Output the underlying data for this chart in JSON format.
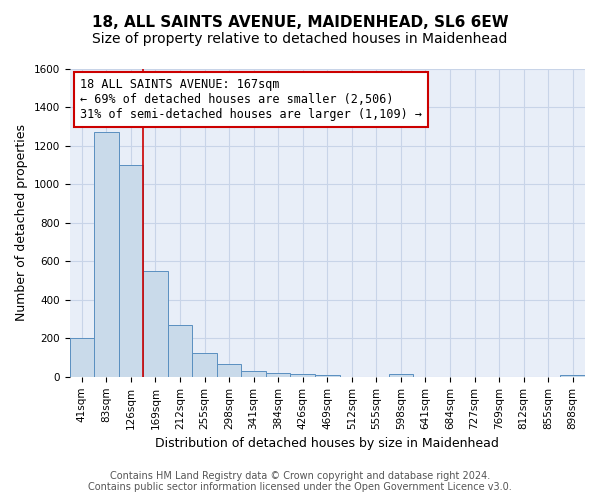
{
  "title": "18, ALL SAINTS AVENUE, MAIDENHEAD, SL6 6EW",
  "subtitle": "Size of property relative to detached houses in Maidenhead",
  "xlabel": "Distribution of detached houses by size in Maidenhead",
  "ylabel": "Number of detached properties",
  "bar_labels": [
    "41sqm",
    "83sqm",
    "126sqm",
    "169sqm",
    "212sqm",
    "255sqm",
    "298sqm",
    "341sqm",
    "384sqm",
    "426sqm",
    "469sqm",
    "512sqm",
    "555sqm",
    "598sqm",
    "641sqm",
    "684sqm",
    "727sqm",
    "769sqm",
    "812sqm",
    "855sqm",
    "898sqm"
  ],
  "bar_values": [
    200,
    1270,
    1100,
    550,
    270,
    125,
    65,
    30,
    20,
    15,
    10,
    0,
    0,
    15,
    0,
    0,
    0,
    0,
    0,
    0,
    10
  ],
  "bar_color": "#c9daea",
  "bar_edge_color": "#5a8fc0",
  "property_line_color": "#cc0000",
  "annotation_title": "18 ALL SAINTS AVENUE: 167sqm",
  "annotation_line1": "← 69% of detached houses are smaller (2,506)",
  "annotation_line2": "31% of semi-detached houses are larger (1,109) →",
  "annotation_box_edge_color": "#cc0000",
  "ylim": [
    0,
    1600
  ],
  "yticks": [
    0,
    200,
    400,
    600,
    800,
    1000,
    1200,
    1400,
    1600
  ],
  "footer1": "Contains HM Land Registry data © Crown copyright and database right 2024.",
  "footer2": "Contains public sector information licensed under the Open Government Licence v3.0.",
  "title_fontsize": 11,
  "label_fontsize": 9,
  "tick_fontsize": 7.5,
  "annotation_fontsize": 8.5,
  "footer_fontsize": 7,
  "grid_color": "#c8d4e8",
  "background_color": "#ffffff",
  "plot_bg_color": "#e8eef8"
}
